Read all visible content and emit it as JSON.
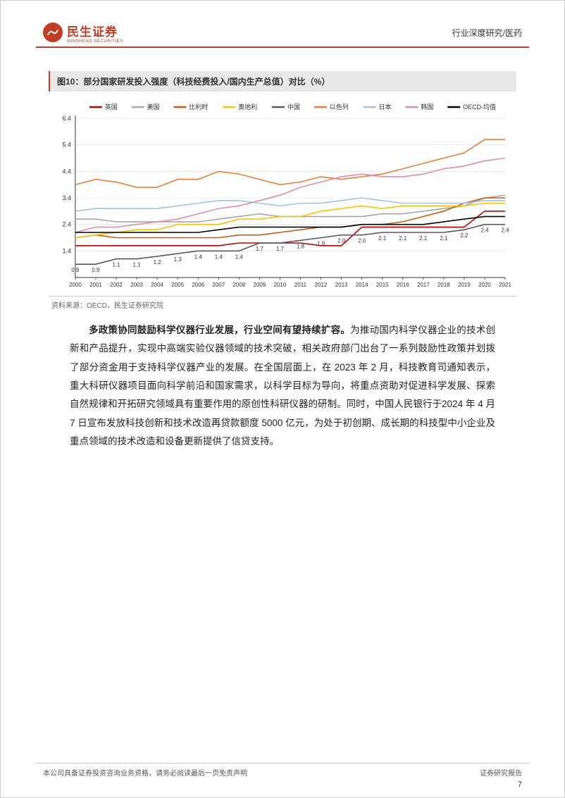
{
  "header": {
    "logo_cn": "民生证券",
    "logo_en": "MINSHENG SECURITIES",
    "right": "行业深度研究/医药"
  },
  "chart": {
    "title": "图10：部分国家研发投入强度（科技经费投入/国内生产总值）对比（%）",
    "source": "资料来源：OECD，民生证券研究院",
    "type": "line",
    "background_color": "#ffffff",
    "grid_color": "#d9d9d9",
    "axis_color": "#333333",
    "label_fontsize": 9,
    "x_categories": [
      "2000",
      "2001",
      "2002",
      "2003",
      "2004",
      "2005",
      "2006",
      "2007",
      "2008",
      "2009",
      "2010",
      "2011",
      "2012",
      "2013",
      "2014",
      "2015",
      "2016",
      "2017",
      "2018",
      "2019",
      "2020",
      "2021"
    ],
    "ylim": [
      0,
      6.4
    ],
    "ytick_step": 1.0,
    "yticks": [
      "1.4",
      "2.4",
      "3.4",
      "4.4",
      "5.4",
      "6.4"
    ],
    "series": [
      {
        "name": "英国",
        "color": "#c00000",
        "values": [
          1.6,
          1.6,
          1.6,
          1.6,
          1.6,
          1.6,
          1.6,
          1.6,
          1.7,
          1.7,
          1.7,
          1.7,
          1.6,
          1.6,
          2.3,
          2.3,
          2.3,
          2.3,
          2.3,
          2.3,
          2.9,
          2.9
        ]
      },
      {
        "name": "美国",
        "color": "#a6a6a6",
        "values": [
          2.6,
          2.6,
          2.5,
          2.5,
          2.5,
          2.5,
          2.5,
          2.6,
          2.7,
          2.8,
          2.7,
          2.7,
          2.7,
          2.7,
          2.7,
          2.8,
          2.8,
          2.9,
          3.0,
          3.1,
          3.4,
          3.5
        ]
      },
      {
        "name": "比利时",
        "color": "#c55a11",
        "values": [
          1.9,
          2.0,
          1.9,
          1.9,
          1.9,
          1.9,
          1.9,
          1.9,
          2.0,
          2.0,
          2.1,
          2.2,
          2.3,
          2.3,
          2.4,
          2.4,
          2.5,
          2.7,
          2.9,
          3.2,
          3.4,
          3.4
        ]
      },
      {
        "name": "奥地利",
        "color": "#ffc000",
        "values": [
          1.9,
          2.0,
          2.1,
          2.2,
          2.2,
          2.4,
          2.4,
          2.4,
          2.6,
          2.6,
          2.7,
          2.7,
          2.9,
          3.0,
          3.1,
          3.0,
          3.1,
          3.1,
          3.1,
          3.1,
          3.2,
          3.2
        ]
      },
      {
        "name": "中国",
        "color": "#595959",
        "values": [
          0.9,
          0.9,
          1.1,
          1.1,
          1.2,
          1.3,
          1.4,
          1.4,
          1.4,
          1.7,
          1.7,
          1.8,
          1.9,
          2.0,
          2.0,
          2.1,
          2.1,
          2.1,
          2.1,
          2.2,
          2.4,
          2.4
        ]
      },
      {
        "name": "以色列",
        "color": "#ed7d31",
        "values": [
          3.9,
          4.1,
          4.0,
          3.8,
          3.8,
          4.1,
          4.1,
          4.4,
          4.3,
          4.1,
          3.9,
          4.0,
          4.2,
          4.1,
          4.2,
          4.3,
          4.5,
          4.7,
          4.9,
          5.1,
          5.6,
          5.6
        ]
      },
      {
        "name": "日本",
        "color": "#9dc3e6",
        "values": [
          2.9,
          3.0,
          3.0,
          3.0,
          3.0,
          3.1,
          3.2,
          3.3,
          3.3,
          3.2,
          3.1,
          3.2,
          3.2,
          3.3,
          3.4,
          3.3,
          3.2,
          3.2,
          3.2,
          3.2,
          3.3,
          3.3
        ]
      },
      {
        "name": "韩国",
        "color": "#e38ca8",
        "values": [
          2.1,
          2.3,
          2.3,
          2.4,
          2.5,
          2.6,
          2.8,
          3.0,
          3.1,
          3.3,
          3.5,
          3.8,
          4.0,
          4.2,
          4.3,
          4.2,
          4.2,
          4.3,
          4.5,
          4.6,
          4.8,
          4.9
        ]
      },
      {
        "name": "OECD-均值",
        "color": "#000000",
        "values": [
          2.1,
          2.1,
          2.1,
          2.1,
          2.1,
          2.1,
          2.1,
          2.2,
          2.3,
          2.3,
          2.3,
          2.3,
          2.3,
          2.3,
          2.4,
          2.4,
          2.4,
          2.4,
          2.5,
          2.6,
          2.7,
          2.7
        ]
      }
    ],
    "china_labels": [
      "0.9",
      "0.9",
      "1.1",
      "1.1",
      "1.2",
      "1.3",
      "1.4",
      "1.4",
      "1.4",
      "1.7",
      "1.7",
      "1.8",
      "1.9",
      "2.0",
      "2.0",
      "2.1",
      "2.1",
      "2.1",
      "2.1",
      "2.2",
      "2.4",
      "2.4"
    ]
  },
  "body": {
    "bold_lead": "多政策协同鼓励科学仪器行业发展，行业空间有望持续扩容。",
    "text": "为推动国内科学仪器企业的技术创新和产品提升，实现中高端实验仪器领域的技术突破，相关政府部门出台了一系列鼓励性政策并划拨了部分资金用于支持科学仪器产业的发展。在全国层面上，在 2023 年 2 月，科技教育司通知表示，重大科研仪器项目面向科学前沿和国家需求，以科学目标为导向，将重点资助对促进科学发展、探索自然规律和开拓研究领域具有重要作用的原创性科研仪器的研制。同时，中国人民银行于2024 年 4 月 7 日宣布发放科技创新和技术改造再贷款额度 5000 亿元，为处于初创期、成长期的科技型中小企业及重点领域的技术改造和设备更新提供了信贷支持。"
  },
  "footer": {
    "left": "本公司具备证券投资咨询业务资格，请务必阅读最后一页免责声明",
    "right": "证券研究报告",
    "page": "7"
  }
}
